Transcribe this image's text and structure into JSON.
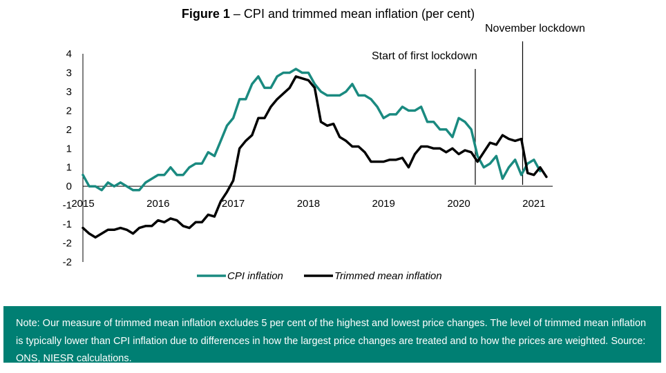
{
  "title_bold": "Figure 1",
  "title_rest": " – CPI and trimmed mean inflation (per cent)",
  "colors": {
    "cpi": "#1a8a80",
    "trimmed": "#000000",
    "note_bg": "#007f73"
  },
  "note": "Note: Our measure of trimmed mean inflation excludes 5 per cent of the highest and lowest price changes. The level of trimmed mean inflation is typically lower than CPI inflation due to differences in how the largest price changes are treated and to how the prices are weighted. Source: ONS, NIESR calculations.",
  "chart_data": {
    "type": "line",
    "title": "CPI and trimmed mean inflation (per cent)",
    "xlabel": "",
    "ylabel": "",
    "xlim": [
      2015.0,
      2021.25
    ],
    "ylim": [
      -2,
      3.5
    ],
    "y_ticks": [
      {
        "value": 3.5,
        "label": "4"
      },
      {
        "value": 3.0,
        "label": "3"
      },
      {
        "value": 2.5,
        "label": "3"
      },
      {
        "value": 2.0,
        "label": "2"
      },
      {
        "value": 1.5,
        "label": "2"
      },
      {
        "value": 1.0,
        "label": "1"
      },
      {
        "value": 0.5,
        "label": "1"
      },
      {
        "value": 0.0,
        "label": "0"
      },
      {
        "value": -0.5,
        "label": "-1"
      },
      {
        "value": -1.0,
        "label": "-1"
      },
      {
        "value": -1.5,
        "label": "-2"
      },
      {
        "value": -2.0,
        "label": "-2"
      }
    ],
    "x_ticks": [
      {
        "value": 2015,
        "label": "2015"
      },
      {
        "value": 2016,
        "label": "2016"
      },
      {
        "value": 2017,
        "label": "2017"
      },
      {
        "value": 2018,
        "label": "2018"
      },
      {
        "value": 2019,
        "label": "2019"
      },
      {
        "value": 2020,
        "label": "2020"
      },
      {
        "value": 2021,
        "label": "2021"
      }
    ],
    "legend_position": "bottom",
    "grid": false,
    "annotations": [
      {
        "label": "Start of first lockdown",
        "x": 2020.22
      },
      {
        "label": "November lockdown",
        "x": 2020.85
      }
    ],
    "series": [
      {
        "name": "CPI inflation",
        "color": "#1a8a80",
        "x_start": 2015.0,
        "x_step": 0.08333,
        "values": [
          0.3,
          0.0,
          0.0,
          -0.1,
          0.1,
          0.0,
          0.1,
          0.0,
          -0.1,
          -0.1,
          0.1,
          0.2,
          0.3,
          0.3,
          0.5,
          0.3,
          0.3,
          0.5,
          0.6,
          0.6,
          0.9,
          0.8,
          1.2,
          1.6,
          1.8,
          2.3,
          2.3,
          2.7,
          2.9,
          2.6,
          2.6,
          2.9,
          3.0,
          3.0,
          3.1,
          3.0,
          3.0,
          2.7,
          2.5,
          2.4,
          2.4,
          2.4,
          2.5,
          2.7,
          2.4,
          2.4,
          2.3,
          2.1,
          1.8,
          1.9,
          1.9,
          2.1,
          2.0,
          2.0,
          2.1,
          1.7,
          1.7,
          1.5,
          1.5,
          1.3,
          1.8,
          1.7,
          1.5,
          0.8,
          0.5,
          0.6,
          0.8,
          0.2,
          0.5,
          0.7,
          0.3,
          0.6,
          0.7,
          0.4
        ]
      },
      {
        "name": "Trimmed mean inflation",
        "color": "#000000",
        "x_start": 2015.0,
        "x_step": 0.08333,
        "values": [
          -1.1,
          -1.25,
          -1.35,
          -1.25,
          -1.15,
          -1.15,
          -1.1,
          -1.15,
          -1.25,
          -1.1,
          -1.05,
          -1.05,
          -0.9,
          -0.95,
          -0.85,
          -0.9,
          -1.05,
          -1.1,
          -0.95,
          -0.95,
          -0.75,
          -0.8,
          -0.4,
          -0.15,
          0.15,
          1.0,
          1.2,
          1.35,
          1.8,
          1.8,
          2.1,
          2.3,
          2.45,
          2.6,
          2.9,
          2.85,
          2.8,
          2.6,
          1.7,
          1.6,
          1.65,
          1.3,
          1.2,
          1.05,
          1.05,
          0.9,
          0.65,
          0.65,
          0.65,
          0.7,
          0.7,
          0.75,
          0.5,
          0.85,
          1.05,
          1.05,
          1.0,
          1.0,
          0.9,
          1.0,
          0.85,
          0.95,
          0.9,
          0.65,
          0.9,
          1.15,
          1.1,
          1.35,
          1.25,
          1.2,
          1.25,
          0.35,
          0.3,
          0.5,
          0.25
        ]
      }
    ]
  }
}
